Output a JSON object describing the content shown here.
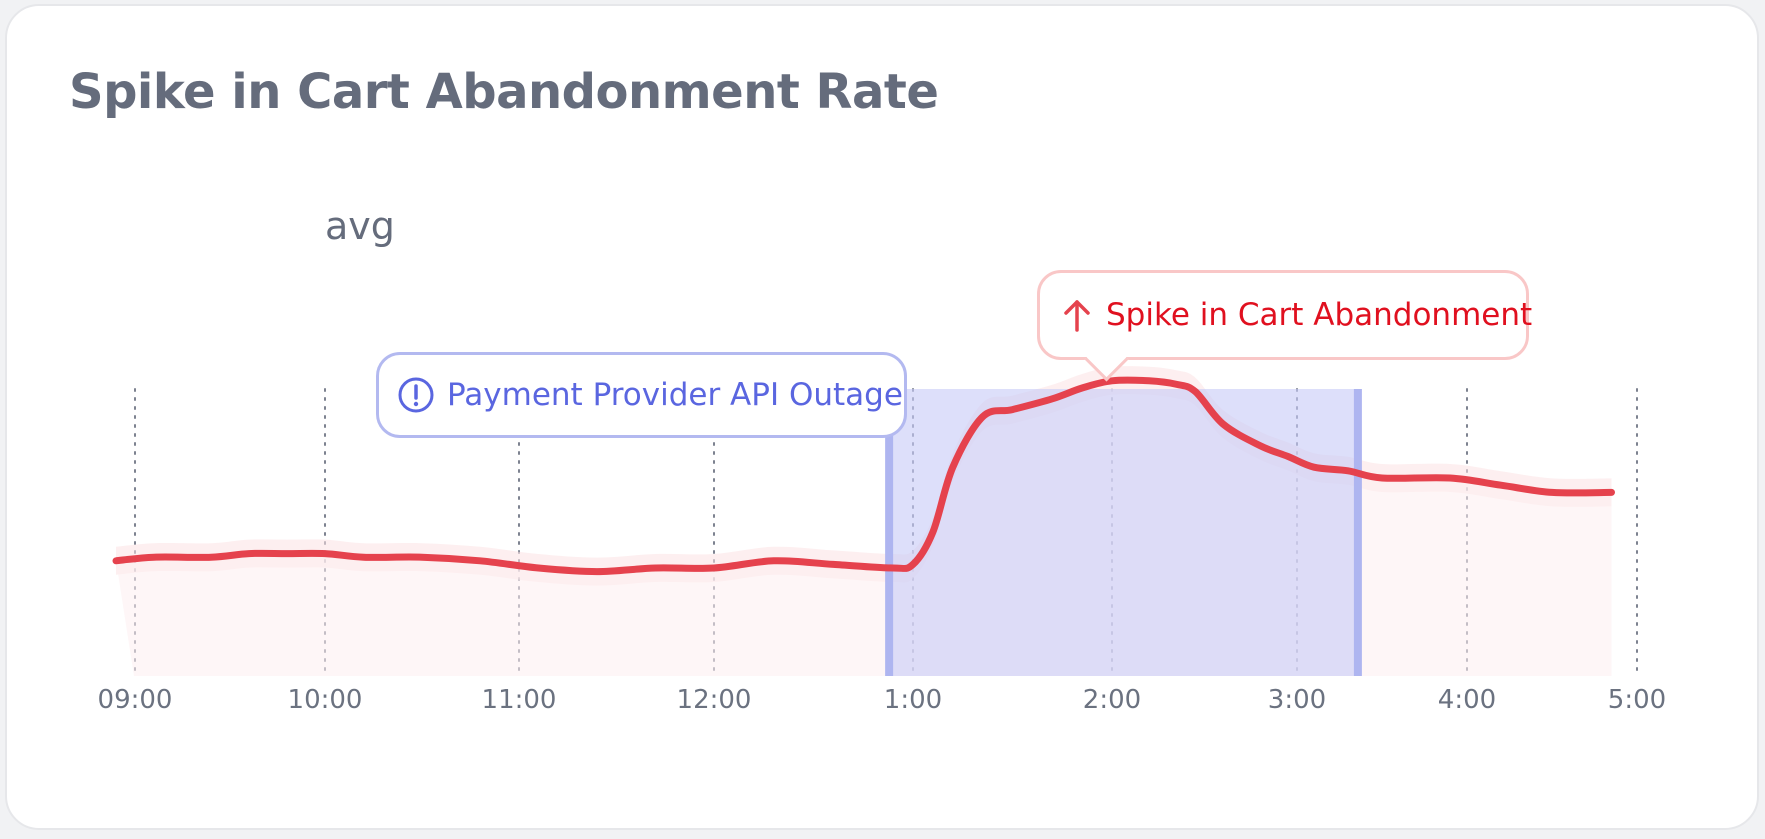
{
  "card": {
    "title": "Spike in Cart Abandonment Rate",
    "series_label": "avg"
  },
  "chart_data": {
    "type": "line",
    "title": "Spike in Cart Abandonment Rate",
    "xlabel": "",
    "ylabel": "",
    "categories": [
      "09:00",
      "10:00",
      "11:00",
      "12:00",
      "1:00",
      "2:00",
      "3:00",
      "4:00",
      "5:00"
    ],
    "ylim": [
      0,
      100
    ],
    "grid": "vertical-dotted",
    "series": [
      {
        "name": "avg",
        "color": "#e5424d",
        "x": [
          -0.1,
          0.1,
          0.4,
          0.6,
          0.8,
          1.0,
          1.2,
          1.5,
          1.8,
          2.1,
          2.4,
          2.7,
          3.0,
          3.3,
          3.6,
          3.9,
          4.0,
          4.1,
          4.2,
          4.35,
          4.5,
          4.7,
          4.85,
          5.0,
          5.2,
          5.35,
          5.45,
          5.6,
          5.8,
          5.95,
          6.1,
          6.3,
          6.5,
          6.9,
          7.2,
          7.5,
          7.85
        ],
        "y": [
          32,
          33,
          33,
          34,
          34,
          34,
          33,
          33,
          32,
          30,
          29,
          30,
          30,
          32,
          31,
          30,
          31,
          40,
          58,
          72,
          74,
          77,
          80,
          82,
          82,
          81,
          79,
          70,
          64,
          61,
          58,
          57,
          55,
          55,
          53,
          51,
          51
        ]
      }
    ],
    "annotations": [
      {
        "type": "event",
        "label": "Payment Provider API Outage",
        "icon": "alert-circle-icon",
        "color": "#5a66e0",
        "x": 3.87
      },
      {
        "type": "range",
        "label": "",
        "x_start": 3.87,
        "x_end": 6.37,
        "color": "#c8ccf7"
      },
      {
        "type": "callout",
        "label": "Spike in Cart Abandonment",
        "icon": "arrow-up-icon",
        "color": "#e0101f",
        "x": 5.0
      }
    ]
  },
  "colors": {
    "accent_line": "#e5424d",
    "event": "#5a66e0",
    "highlight": "#c8ccf7",
    "alert": "#e0101f",
    "muted_text": "#656c7c"
  }
}
